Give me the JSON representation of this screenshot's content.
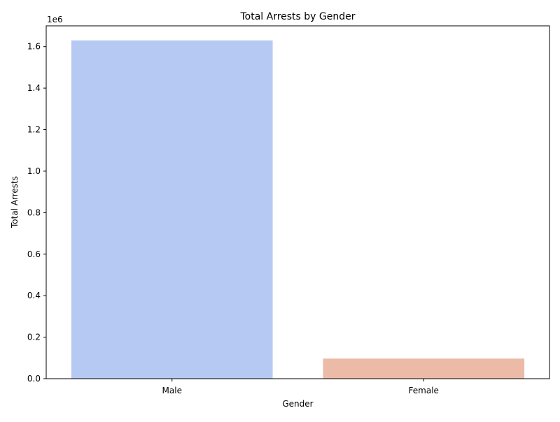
{
  "chart_data": {
    "type": "bar",
    "title": "Total Arrests by Gender",
    "xlabel": "Gender",
    "ylabel": "Total Arrests",
    "categories": [
      "Male",
      "Female"
    ],
    "values": [
      1630000,
      97000
    ],
    "colors": [
      "#b5c9f2",
      "#ebbba7"
    ],
    "ylim": [
      0,
      1700000
    ],
    "y_offset_label": "1e6",
    "y_ticks": [
      {
        "value": 0,
        "label": "0.0"
      },
      {
        "value": 200000,
        "label": "0.2"
      },
      {
        "value": 400000,
        "label": "0.4"
      },
      {
        "value": 600000,
        "label": "0.6"
      },
      {
        "value": 800000,
        "label": "0.8"
      },
      {
        "value": 1000000,
        "label": "1.0"
      },
      {
        "value": 1200000,
        "label": "1.2"
      },
      {
        "value": 1400000,
        "label": "1.4"
      },
      {
        "value": 1600000,
        "label": "1.6"
      }
    ],
    "grid": false,
    "legend": "none"
  }
}
